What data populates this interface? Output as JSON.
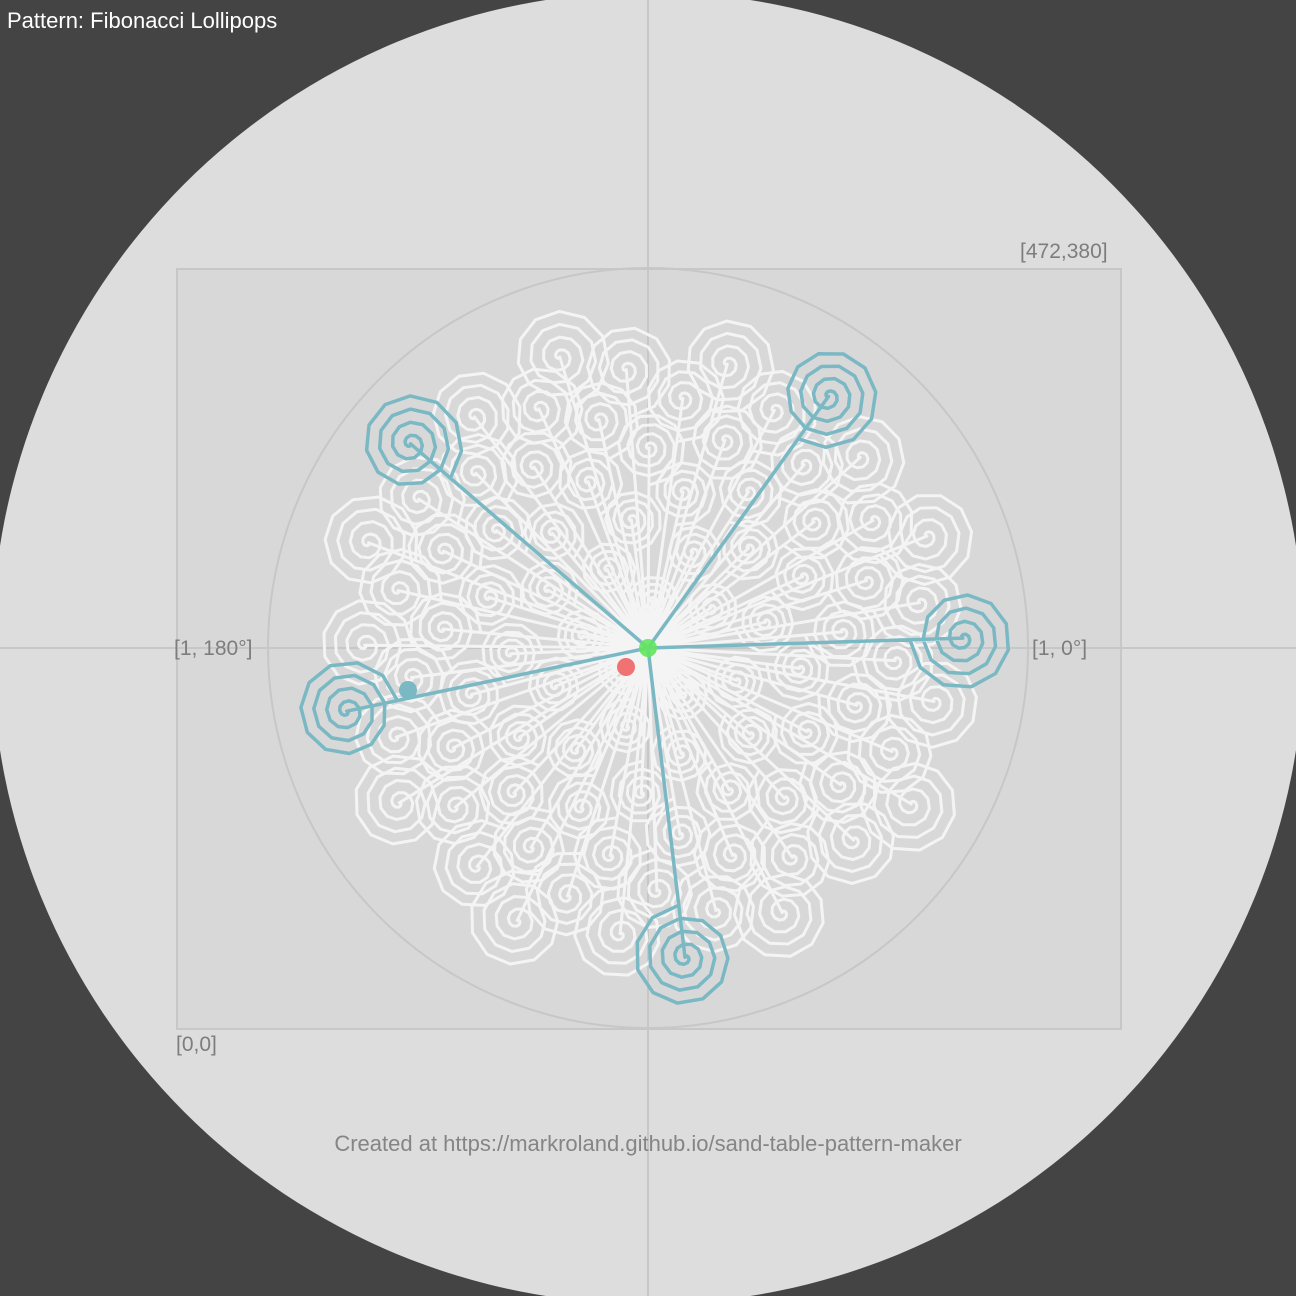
{
  "header": {
    "title": "Pattern: Fibonacci Lollipops"
  },
  "labels": {
    "top_right_corner": "[472,380]",
    "bottom_left_corner": "[0,0]",
    "polar_left": "[1, 180°]",
    "polar_right": "[1, 0°]"
  },
  "footer": {
    "credit": "Created at https://markroland.github.io/sand-table-pattern-maker"
  },
  "pattern": {
    "lollipop_count": 89,
    "highlighted_count": 5
  },
  "colors": {
    "page_background": "#444444",
    "table_surface": "#dddddd",
    "drawing_area": "#d8d8d8",
    "guide_lines": "#c7c7c7",
    "pattern_trace": "#f4f4f4",
    "path_highlight": "#7ab8c4",
    "start_marker": "#63e55f",
    "end_marker": "#f06464"
  }
}
